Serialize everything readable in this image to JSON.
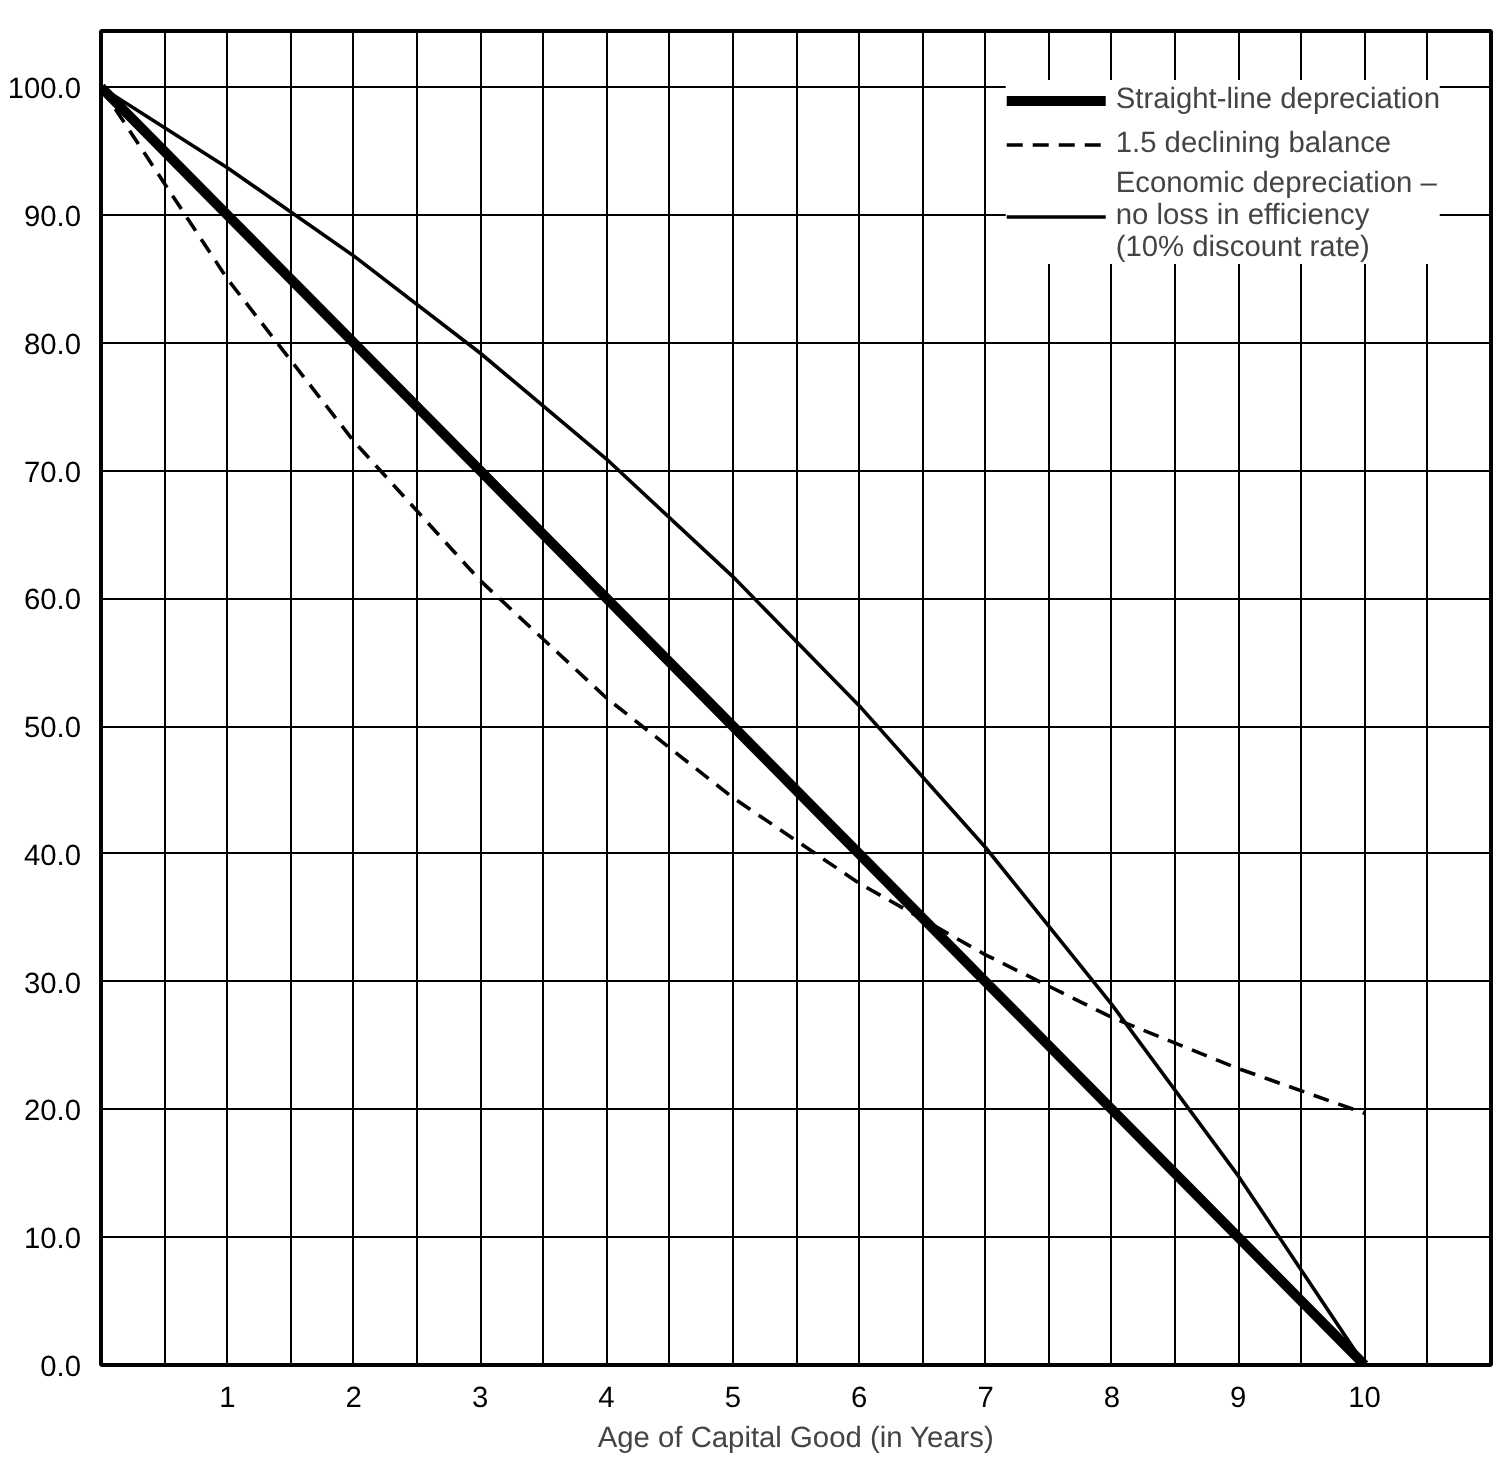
{
  "chart_data": {
    "type": "line",
    "xlabel": "Age of Capital Good (in Years)",
    "x": [
      0,
      1,
      2,
      3,
      4,
      5,
      6,
      7,
      8,
      9,
      10
    ],
    "series": [
      {
        "name": "Straight-line depreciation",
        "color": "#000000",
        "line_style": "solid",
        "values": [
          100,
          90,
          80,
          70,
          60,
          50,
          40,
          30,
          20,
          10,
          0
        ]
      },
      {
        "name": "1.5 declining balance",
        "color": "#000000",
        "line_style": "dashed",
        "values": [
          100,
          85,
          72.3,
          61.4,
          52.2,
          44.4,
          37.7,
          32.1,
          27.2,
          23.2,
          19.7
        ]
      },
      {
        "name": "Economic depreciation –\nno loss in efficiency\n(10% discount rate)",
        "color": "#000000",
        "line_style": "solid",
        "values": [
          100,
          93.7,
          86.8,
          79.2,
          70.9,
          61.7,
          51.6,
          40.5,
          28.2,
          14.8,
          0
        ]
      }
    ],
    "xlim": [
      0,
      11
    ],
    "ylim": [
      0,
      104.4
    ],
    "xticks": [
      {
        "value": 0.5,
        "label": null
      },
      1,
      {
        "value": 1.5,
        "label": null
      },
      2,
      {
        "value": 2.5,
        "label": null
      },
      3,
      {
        "value": 3.5,
        "label": null
      },
      4,
      {
        "value": 4.5,
        "label": null
      },
      5,
      {
        "value": 5.5,
        "label": null
      },
      6,
      {
        "value": 6.5,
        "label": null
      },
      7,
      {
        "value": 7.5,
        "label": null
      },
      8,
      {
        "value": 8.5,
        "label": null
      },
      9,
      {
        "value": 9.5,
        "label": null
      },
      10,
      {
        "value": 10.5,
        "label": null
      }
    ],
    "yticks": [
      {
        "value": 0,
        "label": "0.0"
      },
      {
        "value": 10,
        "label": "10.0"
      },
      {
        "value": 20,
        "label": "20.0"
      },
      {
        "value": 30,
        "label": "30.0"
      },
      {
        "value": 40,
        "label": "40.0"
      },
      {
        "value": 50,
        "label": "50.0"
      },
      {
        "value": 60,
        "label": "60.0"
      },
      {
        "value": 70,
        "label": "70.0"
      },
      {
        "value": 80,
        "label": "80.0"
      },
      {
        "value": 90,
        "label": "90.0"
      },
      {
        "value": 100,
        "label": "100.0"
      }
    ],
    "grid": true,
    "legend": "top right"
  }
}
